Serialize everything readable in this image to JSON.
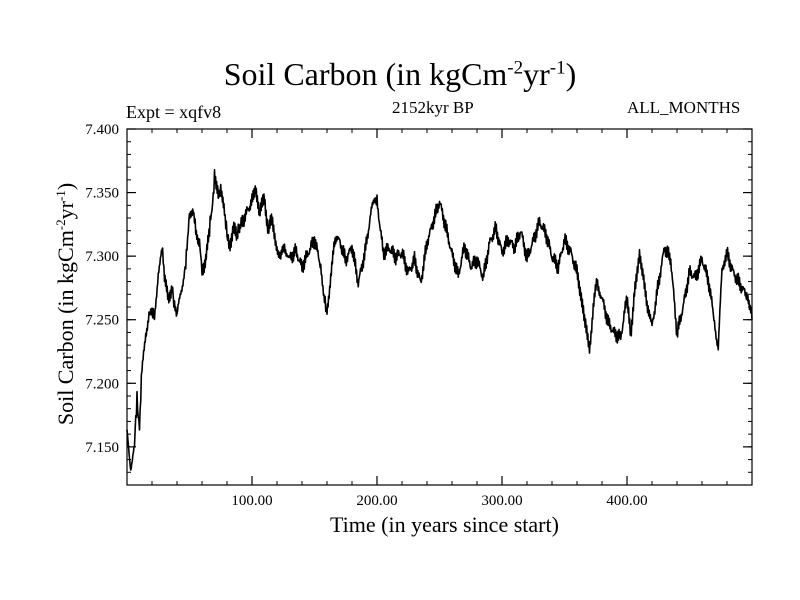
{
  "chart_data": {
    "type": "line",
    "title_main": "Soil Carbon (in kgCm",
    "title_exp1": "-2",
    "title_mid": "yr",
    "title_exp2": "-1",
    "title_end": ")",
    "subtitle": "2152kyr BP",
    "expt_label": "Expt = xqfv8",
    "season_label": "ALL_MONTHS",
    "xlabel": "Time (in years since start)",
    "ylabel_main": "Soil Carbon (in kgCm",
    "ylabel_exp1": "-2",
    "ylabel_mid": "yr",
    "ylabel_exp2": "-1",
    "ylabel_end": ")",
    "xlim": [
      0,
      500
    ],
    "ylim": [
      7.12,
      7.4
    ],
    "x_ticks": [
      100,
      200,
      300,
      400
    ],
    "x_tick_labels": [
      "100.00",
      "200.00",
      "300.00",
      "400.00"
    ],
    "y_ticks": [
      7.15,
      7.2,
      7.25,
      7.3,
      7.35,
      7.4
    ],
    "y_tick_labels": [
      "7.150",
      "7.200",
      "7.250",
      "7.300",
      "7.350",
      "7.400"
    ],
    "series": [
      {
        "name": "Soil Carbon",
        "color": "#000000",
        "x": [
          0,
          3,
          6,
          8,
          10,
          12,
          15,
          18,
          20,
          22,
          25,
          28,
          30,
          33,
          36,
          38,
          40,
          43,
          46,
          48,
          50,
          53,
          55,
          58,
          60,
          63,
          66,
          68,
          70,
          73,
          75,
          78,
          80,
          82,
          85,
          88,
          90,
          95,
          100,
          103,
          106,
          110,
          113,
          116,
          120,
          123,
          126,
          130,
          135,
          140,
          145,
          150,
          155,
          158,
          160,
          163,
          166,
          170,
          175,
          180,
          185,
          190,
          195,
          198,
          200,
          205,
          210,
          215,
          220,
          225,
          230,
          235,
          240,
          245,
          250,
          255,
          260,
          265,
          270,
          275,
          280,
          285,
          290,
          295,
          300,
          305,
          310,
          315,
          320,
          325,
          330,
          335,
          340,
          345,
          350,
          355,
          360,
          363,
          366,
          370,
          373,
          376,
          380,
          385,
          390,
          395,
          400,
          403,
          406,
          410,
          413,
          416,
          420,
          425,
          430,
          435,
          440,
          445,
          450,
          455,
          460,
          465,
          470,
          473,
          476,
          480,
          485,
          490,
          495,
          498,
          500
        ],
        "values": [
          7.16,
          7.135,
          7.15,
          7.19,
          7.165,
          7.21,
          7.24,
          7.255,
          7.26,
          7.25,
          7.29,
          7.305,
          7.285,
          7.265,
          7.28,
          7.26,
          7.25,
          7.27,
          7.285,
          7.31,
          7.33,
          7.34,
          7.32,
          7.315,
          7.29,
          7.3,
          7.32,
          7.335,
          7.365,
          7.345,
          7.355,
          7.33,
          7.32,
          7.31,
          7.325,
          7.315,
          7.32,
          7.33,
          7.34,
          7.355,
          7.33,
          7.345,
          7.32,
          7.325,
          7.31,
          7.3,
          7.31,
          7.3,
          7.305,
          7.29,
          7.3,
          7.31,
          7.29,
          7.27,
          7.255,
          7.285,
          7.31,
          7.315,
          7.3,
          7.31,
          7.28,
          7.3,
          7.33,
          7.345,
          7.34,
          7.3,
          7.305,
          7.3,
          7.305,
          7.29,
          7.3,
          7.28,
          7.31,
          7.325,
          7.34,
          7.32,
          7.3,
          7.285,
          7.31,
          7.295,
          7.3,
          7.285,
          7.31,
          7.32,
          7.3,
          7.31,
          7.305,
          7.32,
          7.3,
          7.315,
          7.33,
          7.32,
          7.3,
          7.29,
          7.31,
          7.3,
          7.285,
          7.27,
          7.245,
          7.23,
          7.26,
          7.28,
          7.27,
          7.25,
          7.24,
          7.235,
          7.265,
          7.24,
          7.27,
          7.3,
          7.29,
          7.26,
          7.245,
          7.28,
          7.31,
          7.3,
          7.24,
          7.26,
          7.285,
          7.28,
          7.295,
          7.28,
          7.25,
          7.23,
          7.29,
          7.305,
          7.29,
          7.28,
          7.27,
          7.26,
          7.25
        ]
      }
    ]
  }
}
